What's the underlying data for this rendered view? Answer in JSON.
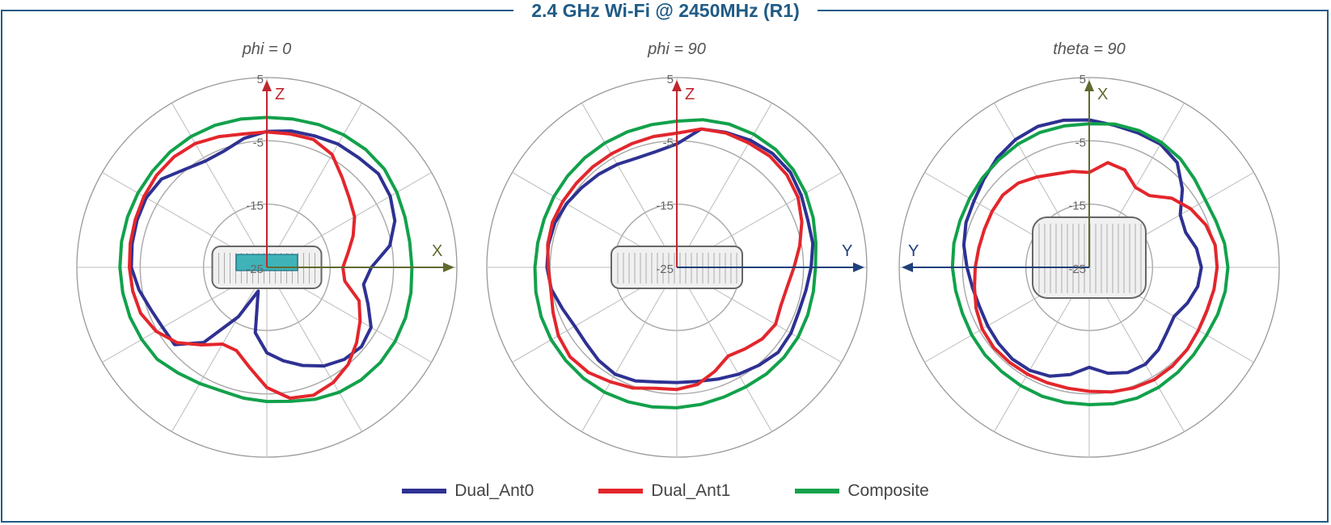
{
  "page": {
    "title": "2.4 GHz Wi-Fi @ 2450MHz (R1)"
  },
  "chart_data": [
    {
      "type": "polar",
      "title": "phi = 0",
      "axes": {
        "vertical": "Z",
        "horizontal": "X",
        "horizontal_dir": "right"
      },
      "radial_ticks": [
        "5",
        "-5",
        "-15",
        "-25"
      ],
      "rlim": [
        -25,
        5
      ],
      "angle_reference": "0 deg = up (Z), clockwise",
      "series": [
        {
          "name": "Dual_Ant0",
          "color": "#2e3192",
          "r": [
            -3.5,
            -3.1,
            -2.9,
            -2.5,
            -2.4,
            -2.0,
            -2.5,
            -3.5,
            -5.3,
            -8.5,
            -9.5,
            -8,
            -6,
            -5.5,
            -6,
            -7,
            -8.5,
            -10,
            -11.5,
            -14.5,
            -21,
            -16,
            -9.5,
            -6,
            -6,
            -5.5,
            -4.5,
            -3.6,
            -3.4,
            -3.2,
            -3.0,
            -3.3,
            -4.8,
            -5.6,
            -5.4,
            -4.3
          ]
        },
        {
          "name": "Dual_Ant1",
          "color": "#e3262c",
          "r": [
            -3.6,
            -3.6,
            -3.5,
            -4.4,
            -6.5,
            -8.0,
            -9.0,
            -10.5,
            -12.0,
            -13.0,
            -12.5,
            -9.5,
            -8,
            -6.5,
            -5,
            -4,
            -3.5,
            -4,
            -6,
            -9,
            -11,
            -11,
            -9,
            -6.5,
            -4.8,
            -3.8,
            -3.5,
            -3.3,
            -3.1,
            -2.9,
            -2.6,
            -2.3,
            -2.2,
            -2.4,
            -3.0,
            -3.6
          ]
        },
        {
          "name": "Composite",
          "color": "#12a14b",
          "r": [
            -1.3,
            -1.2,
            -1.0,
            -0.8,
            -0.7,
            -0.8,
            -1.3,
            -1.8,
            -2.1,
            -2.1,
            -1.9,
            -1.7,
            -1.6,
            -1.6,
            -1.8,
            -2.2,
            -2.8,
            -3.5,
            -3.8,
            -4.0,
            -4.2,
            -3.8,
            -3.2,
            -2.4,
            -2.2,
            -2.0,
            -1.9,
            -1.8,
            -1.7,
            -1.6,
            -1.5,
            -1.4,
            -1.2,
            -1.1,
            -1.1,
            -1.2
          ]
        }
      ]
    },
    {
      "type": "polar",
      "title": "phi = 90",
      "axes": {
        "vertical": "Z",
        "horizontal": "Y",
        "horizontal_dir": "right"
      },
      "radial_ticks": [
        "5",
        "-5",
        "-15",
        "-25"
      ],
      "rlim": [
        -25,
        5
      ],
      "angle_reference": "0 deg = up (Z), clockwise",
      "series": [
        {
          "name": "Dual_Ant0",
          "color": "#2e3192",
          "r": [
            -5.5,
            -2.8,
            -2.3,
            -1.8,
            -1.5,
            -1.6,
            -2.3,
            -3.0,
            -3.2,
            -3.8,
            -4.3,
            -4.5,
            -4.2,
            -4.1,
            -4.8,
            -5.5,
            -6.2,
            -6.7,
            -6.8,
            -6.6,
            -5.9,
            -5.5,
            -5.8,
            -6.3,
            -6.4,
            -5.8,
            -4.9,
            -4.5,
            -4.4,
            -4.5,
            -4.9,
            -5.4,
            -5.8,
            -6.2,
            -6.6,
            -6.4
          ]
        },
        {
          "name": "Dual_Ant1",
          "color": "#e3262c",
          "r": [
            -3.8,
            -2.8,
            -2.4,
            -2.3,
            -2.1,
            -2.3,
            -2.9,
            -4.0,
            -5.3,
            -6.5,
            -7.3,
            -7.5,
            -7.0,
            -7.4,
            -8.2,
            -8.8,
            -7.5,
            -6.2,
            -5.7,
            -5.6,
            -4.7,
            -4.1,
            -3.3,
            -3.0,
            -3.4,
            -4.2,
            -4.8,
            -4.7,
            -4.3,
            -4.1,
            -4.2,
            -4.3,
            -4.3,
            -4.3,
            -4.2,
            -4.0
          ]
        },
        {
          "name": "Composite",
          "color": "#12a14b",
          "r": [
            -1.9,
            -1.3,
            -0.9,
            -0.7,
            -0.7,
            -1.0,
            -1.5,
            -2.1,
            -2.7,
            -3.1,
            -3.1,
            -3.0,
            -2.9,
            -2.9,
            -3.0,
            -3.2,
            -3.2,
            -3.0,
            -2.8,
            -2.6,
            -2.4,
            -2.2,
            -2.1,
            -2.1,
            -2.1,
            -2.2,
            -2.4,
            -2.6,
            -2.7,
            -2.7,
            -2.6,
            -2.5,
            -2.4,
            -2.3,
            -2.2,
            -2.1
          ]
        }
      ]
    },
    {
      "type": "polar",
      "title": "theta = 90",
      "axes": {
        "vertical": "X",
        "horizontal": "Y",
        "horizontal_dir": "left"
      },
      "radial_ticks": [
        "5",
        "-5",
        "-15",
        "-25"
      ],
      "rlim": [
        -25,
        5
      ],
      "angle_reference": "0 deg = up (X), clockwise",
      "series": [
        {
          "name": "Dual_Ant0",
          "color": "#2e3192",
          "r": [
            -1.7,
            -2.2,
            -2.4,
            -2.5,
            -3.4,
            -5.8,
            -8.4,
            -8.8,
            -7.8,
            -7.3,
            -7.6,
            -8.5,
            -9.5,
            -9.0,
            -8.0,
            -7.3,
            -7.3,
            -8.0,
            -9.2,
            -7.8,
            -6.7,
            -6.2,
            -6.1,
            -6.3,
            -6.5,
            -6.6,
            -6.3,
            -5.7,
            -4.9,
            -4.3,
            -4.0,
            -3.3,
            -2.4,
            -1.7,
            -1.3,
            -1.4
          ]
        },
        {
          "name": "Dual_Ant1",
          "color": "#e3262c",
          "r": [
            -10.0,
            -8.2,
            -8.6,
            -10.4,
            -10.2,
            -8.0,
            -6.5,
            -5.4,
            -4.8,
            -4.8,
            -5.0,
            -5.2,
            -5.1,
            -4.8,
            -4.6,
            -4.5,
            -4.7,
            -5.0,
            -5.4,
            -5.6,
            -5.6,
            -5.5,
            -5.4,
            -5.3,
            -5.5,
            -6.0,
            -6.6,
            -7.0,
            -7.3,
            -7.4,
            -7.3,
            -7.2,
            -7.6,
            -8.5,
            -9.3,
            -9.6
          ]
        },
        {
          "name": "Composite",
          "color": "#12a14b",
          "r": [
            -2.3,
            -2.0,
            -2.0,
            -2.2,
            -2.6,
            -3.3,
            -3.8,
            -3.7,
            -3.3,
            -3.1,
            -3.2,
            -3.4,
            -3.6,
            -3.5,
            -3.3,
            -3.1,
            -3.0,
            -3.1,
            -3.3,
            -3.3,
            -3.3,
            -3.4,
            -3.5,
            -3.5,
            -3.6,
            -3.7,
            -3.6,
            -3.4,
            -3.3,
            -3.3,
            -3.2,
            -3.0,
            -2.8,
            -2.5,
            -2.3,
            -2.3
          ]
        }
      ]
    }
  ],
  "legend": [
    {
      "name": "Dual_Ant0",
      "color": "#2e3192"
    },
    {
      "name": "Dual_Ant1",
      "color": "#e3262c"
    },
    {
      "name": "Composite",
      "color": "#12a14b"
    }
  ],
  "colors": {
    "frame": "#1f5b86",
    "axis_red": "#c0262d",
    "axis_green": "#5f6a2e",
    "axis_blue": "#1f3f7a",
    "grid": "#bbbbbb"
  }
}
